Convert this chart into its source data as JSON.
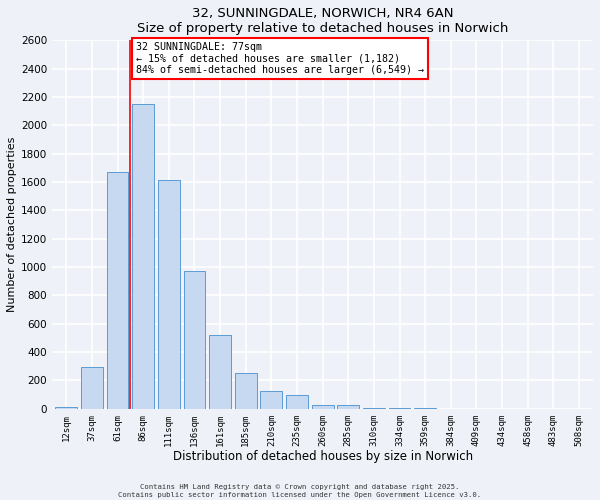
{
  "title": "32, SUNNINGDALE, NORWICH, NR4 6AN",
  "subtitle": "Size of property relative to detached houses in Norwich",
  "xlabel": "Distribution of detached houses by size in Norwich",
  "ylabel": "Number of detached properties",
  "bin_labels": [
    "12sqm",
    "37sqm",
    "61sqm",
    "86sqm",
    "111sqm",
    "136sqm",
    "161sqm",
    "185sqm",
    "210sqm",
    "235sqm",
    "260sqm",
    "285sqm",
    "310sqm",
    "334sqm",
    "359sqm",
    "384sqm",
    "409sqm",
    "434sqm",
    "458sqm",
    "483sqm",
    "508sqm"
  ],
  "bar_values": [
    10,
    295,
    1670,
    2150,
    1615,
    970,
    520,
    255,
    125,
    95,
    30,
    30,
    5,
    5,
    2,
    1,
    1,
    0,
    0,
    0,
    0
  ],
  "bar_color": "#c6d9f0",
  "bar_edge_color": "#5b9bd5",
  "vline_x_index": 2.5,
  "vline_color": "red",
  "annotation_text": "32 SUNNINGDALE: 77sqm\n← 15% of detached houses are smaller (1,182)\n84% of semi-detached houses are larger (6,549) →",
  "annotation_box_color": "white",
  "annotation_box_edge_color": "red",
  "ylim": [
    0,
    2600
  ],
  "yticks": [
    0,
    200,
    400,
    600,
    800,
    1000,
    1200,
    1400,
    1600,
    1800,
    2000,
    2200,
    2400,
    2600
  ],
  "background_color": "#eef2f8",
  "grid_color": "white",
  "footer_line1": "Contains HM Land Registry data © Crown copyright and database right 2025.",
  "footer_line2": "Contains public sector information licensed under the Open Government Licence v3.0."
}
